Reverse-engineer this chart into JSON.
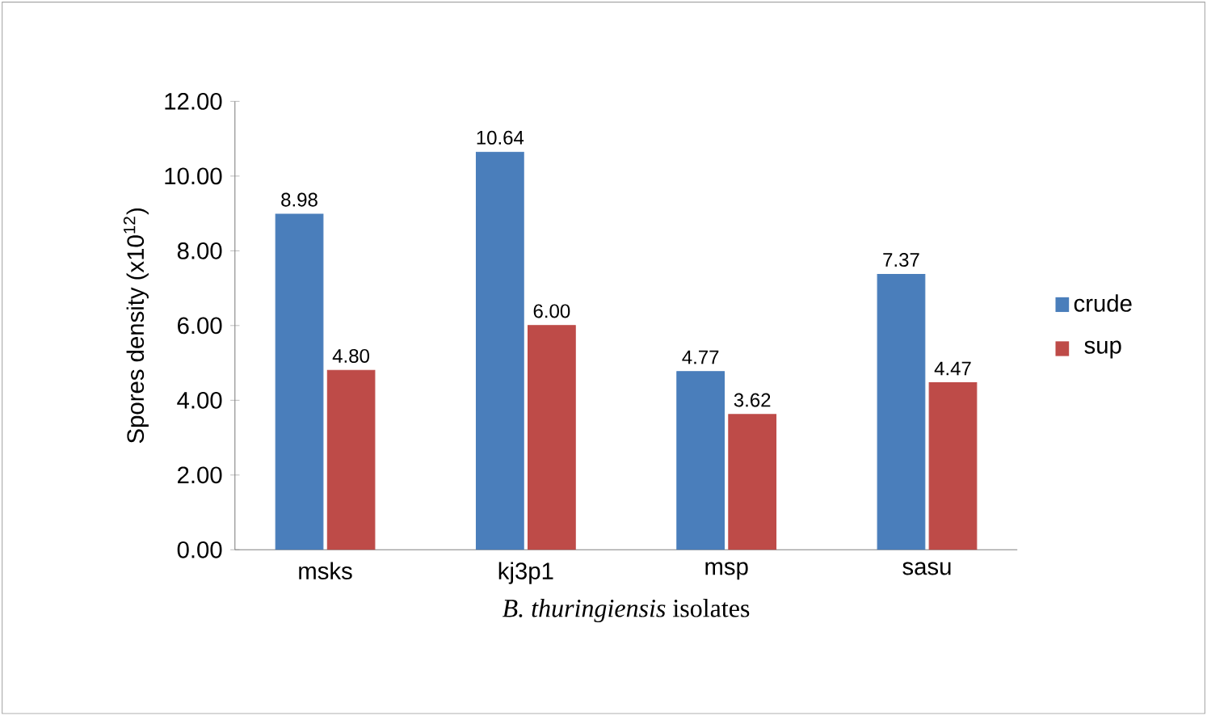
{
  "chart_data": {
    "type": "bar",
    "ylabel": "Spores density (x10$^{12}$)",
    "xlabel": "*B. thuringiensis* isolates",
    "categories": [
      "msks",
      "kj3p1",
      "msp",
      "sasu"
    ],
    "series": [
      {
        "name": "crude",
        "color": "#4a7ebb",
        "values": [
          8.98,
          10.64,
          4.77,
          7.37
        ],
        "value_labels": [
          "8.98",
          "10.64",
          "4.77",
          "7.37"
        ]
      },
      {
        "name": "sup",
        "color": "#be4b48",
        "values": [
          4.8,
          6.0,
          3.62,
          4.47
        ],
        "value_labels": [
          "4.80",
          "6.00",
          "3.62",
          "4.47"
        ]
      }
    ],
    "ylim": [
      0,
      12
    ],
    "yticks": [
      {
        "value": 0,
        "label": "0.00"
      },
      {
        "value": 2,
        "label": "2.00"
      },
      {
        "value": 4,
        "label": "4.00"
      },
      {
        "value": 6,
        "label": "6.00"
      },
      {
        "value": 8,
        "label": "8.00"
      },
      {
        "value": 10,
        "label": "10.00"
      },
      {
        "value": 12,
        "label": "12.00"
      }
    ],
    "legend": "right"
  }
}
